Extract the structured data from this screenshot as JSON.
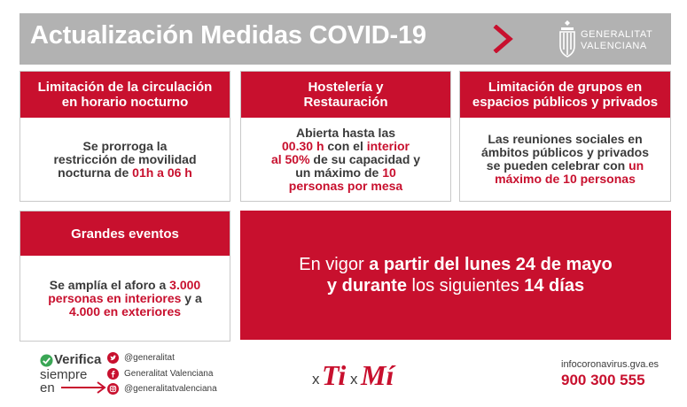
{
  "header": {
    "title": "Actualización Medidas COVID-19",
    "logo_line1": "GENERALITAT",
    "logo_line2": "VALENCIANA"
  },
  "cards": {
    "curfew": {
      "title_line1": "Limitación de la circulación",
      "title_line2": "en horario nocturno",
      "body_line1": "Se prorroga la",
      "body_line2": "restricción de movilidad",
      "body_line3_a": "nocturna de ",
      "body_line3_b": "01h a 06 h"
    },
    "hospitality": {
      "title_line1": "Hostelería y",
      "title_line2": "Restauración",
      "body_line1": "Abierta hasta las",
      "body_line2_a": "00.30 h",
      "body_line2_b": " con el ",
      "body_line2_c": "interior",
      "body_line3_a": "al 50%",
      "body_line3_b": " de su capacidad y",
      "body_line4_a": "un máximo de ",
      "body_line4_b": "10",
      "body_line5": "personas por mesa"
    },
    "groups": {
      "title_line1": "Limitación de grupos en",
      "title_line2": "espacios públicos y privados",
      "body_line1": "Las reuniones sociales en",
      "body_line2": "ámbitos públicos y privados",
      "body_line3_a": "se pueden celebrar con ",
      "body_line3_b": "un",
      "body_line4": "máximo de 10 personas"
    },
    "events": {
      "title": "Grandes eventos",
      "body_line1_a": "Se amplía el aforo a ",
      "body_line1_b": "3.000",
      "body_line2_a": "personas en interiores",
      "body_line2_b": " y a",
      "body_line3": "4.000 en exteriores"
    }
  },
  "banner": {
    "line1_a": "En vigor ",
    "line1_b": "a partir del lunes 24 de mayo",
    "line2_a": "y durante",
    "line2_b": " los siguientes ",
    "line2_c": "14 días"
  },
  "footer": {
    "verify": "Verifica",
    "siempre": "siempre",
    "en": "en",
    "social": [
      {
        "icon": "twitter-icon",
        "label": "@generalitat"
      },
      {
        "icon": "facebook-icon",
        "label": "Generalitat Valenciana"
      },
      {
        "icon": "instagram-icon",
        "label": "@generalitatvalenciana"
      }
    ],
    "slogan_x1": "x",
    "slogan_ti": "Ti",
    "slogan_x2": "x",
    "slogan_mi": "Mí",
    "info_url": "infocoronavirus.gva.es",
    "info_phone": "900 300 555"
  },
  "colors": {
    "accent_red": "#c8102e",
    "header_gray": "#b2b2b2",
    "text_dark": "#3c3c3c"
  }
}
